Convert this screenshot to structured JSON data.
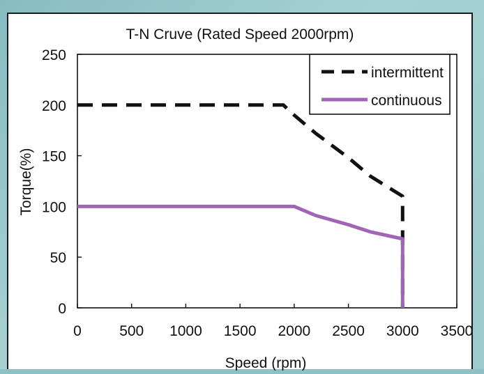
{
  "chart_data": {
    "type": "line",
    "title": "T-N Cruve (Rated Speed 2000rpm)",
    "xlabel": "Speed (rpm)",
    "ylabel": "Torque(%)",
    "xlim": [
      0,
      3500
    ],
    "ylim": [
      0,
      250
    ],
    "xticks": [
      "0",
      "500",
      "1000",
      "1500",
      "2000",
      "2500",
      "3000",
      "3500"
    ],
    "yticks": [
      "0",
      "50",
      "100",
      "150",
      "200",
      "250"
    ],
    "grid": false,
    "legend": "top-right",
    "series": [
      {
        "name": "intermittent",
        "style": "dashed",
        "color": "#111111",
        "points": [
          [
            0,
            200
          ],
          [
            1900,
            200
          ],
          [
            2000,
            190
          ],
          [
            2200,
            172
          ],
          [
            2500,
            148
          ],
          [
            2700,
            130
          ],
          [
            3000,
            110
          ],
          [
            3000,
            0
          ]
        ]
      },
      {
        "name": "continuous",
        "style": "solid",
        "color": "#a264b7",
        "points": [
          [
            0,
            100
          ],
          [
            2000,
            100
          ],
          [
            2200,
            91
          ],
          [
            2500,
            82
          ],
          [
            2700,
            75
          ],
          [
            3000,
            68
          ],
          [
            3000,
            0
          ]
        ]
      }
    ]
  }
}
